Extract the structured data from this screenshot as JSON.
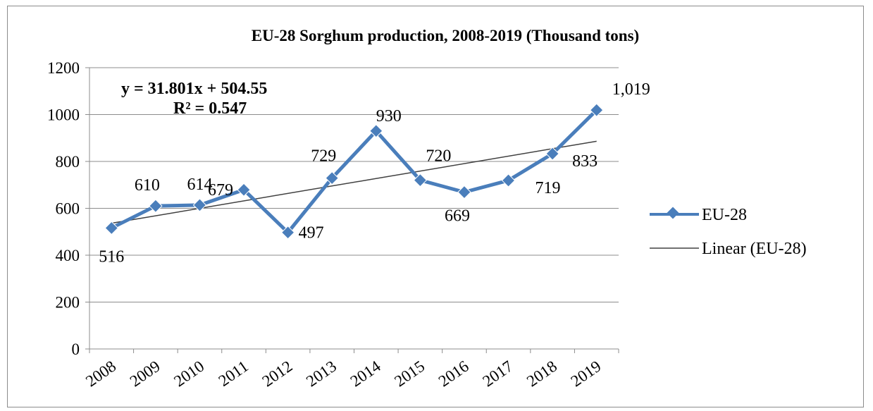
{
  "chart_data": {
    "type": "line",
    "title": "EU-28 Sorghum production, 2008-2019 (Thousand tons)",
    "xlabel": "",
    "ylabel": "",
    "categories": [
      "2008",
      "2009",
      "2010",
      "2011",
      "2012",
      "2013",
      "2014",
      "2015",
      "2016",
      "2017",
      "2018",
      "2019"
    ],
    "series": [
      {
        "name": "EU-28",
        "values": [
          516,
          610,
          614,
          679,
          497,
          729,
          930,
          720,
          669,
          719,
          833,
          1019
        ],
        "data_labels": [
          "516",
          "610",
          "614",
          "679",
          "497",
          "729",
          "930",
          "720",
          "669",
          "719",
          "833",
          "1,019"
        ],
        "color": "#4a7ebb",
        "marker": "diamond"
      }
    ],
    "trendline": {
      "name": "Linear (EU-28)",
      "type": "linear",
      "slope": 31.801,
      "intercept": 504.55,
      "equation": "y = 31.801x + 504.55",
      "r_squared": "R² = 0.547",
      "color": "#404040"
    },
    "ylim": [
      0,
      1200
    ],
    "yticks": [
      "0",
      "200",
      "400",
      "600",
      "800",
      "1000",
      "1200"
    ],
    "grid": true,
    "legend": "right"
  }
}
